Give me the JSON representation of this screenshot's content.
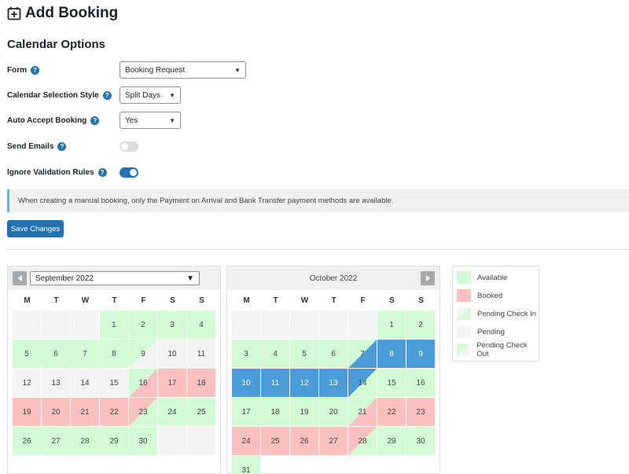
{
  "header": {
    "title": "Add Booking",
    "section_title": "Calendar Options"
  },
  "form": {
    "rows": [
      {
        "label": "Form",
        "control": "select",
        "value": "Booking Request"
      },
      {
        "label": "Calendar Selection Style",
        "control": "select",
        "value": "Split Days"
      },
      {
        "label": "Auto Accept Booking",
        "control": "select",
        "value": "Yes"
      },
      {
        "label": "Send Emails",
        "control": "toggle",
        "state": "off"
      },
      {
        "label": "Ignore Validation Rules",
        "control": "toggle",
        "state": "on"
      }
    ],
    "help_glyph": "?"
  },
  "notice": {
    "text": "When creating a manual booking, only the Payment on Arrival and Bank Transfer payment methods are available."
  },
  "save_button": {
    "label": "Save Changes"
  },
  "weekdays": [
    "M",
    "T",
    "W",
    "T",
    "F",
    "S",
    "S"
  ],
  "calendars": [
    {
      "month": "September 2022",
      "header_type": "select",
      "offset": 3,
      "days": [
        {
          "n": "1",
          "s": "available"
        },
        {
          "n": "2",
          "s": "available"
        },
        {
          "n": "3",
          "s": "available"
        },
        {
          "n": "4",
          "s": "available"
        },
        {
          "n": "5",
          "s": "available"
        },
        {
          "n": "6",
          "s": "available"
        },
        {
          "n": "7",
          "s": "available"
        },
        {
          "n": "8",
          "s": "available"
        },
        {
          "n": "9",
          "s": "checkout-available"
        },
        {
          "n": "10",
          "s": "pending"
        },
        {
          "n": "11",
          "s": "pending"
        },
        {
          "n": "12",
          "s": "pending"
        },
        {
          "n": "13",
          "s": "pending"
        },
        {
          "n": "14",
          "s": "pending"
        },
        {
          "n": "15",
          "s": "pending"
        },
        {
          "n": "16",
          "s": "checkin-booked"
        },
        {
          "n": "17",
          "s": "booked"
        },
        {
          "n": "18",
          "s": "booked"
        },
        {
          "n": "19",
          "s": "booked"
        },
        {
          "n": "20",
          "s": "booked"
        },
        {
          "n": "21",
          "s": "booked"
        },
        {
          "n": "22",
          "s": "booked"
        },
        {
          "n": "23",
          "s": "booked-avail"
        },
        {
          "n": "24",
          "s": "available"
        },
        {
          "n": "25",
          "s": "available"
        },
        {
          "n": "26",
          "s": "available"
        },
        {
          "n": "27",
          "s": "available"
        },
        {
          "n": "28",
          "s": "available"
        },
        {
          "n": "29",
          "s": "available"
        },
        {
          "n": "30",
          "s": "available"
        }
      ]
    },
    {
      "month": "October 2022",
      "header_type": "label",
      "offset": 5,
      "days": [
        {
          "n": "1",
          "s": "available"
        },
        {
          "n": "2",
          "s": "available"
        },
        {
          "n": "3",
          "s": "available"
        },
        {
          "n": "4",
          "s": "available"
        },
        {
          "n": "5",
          "s": "available"
        },
        {
          "n": "6",
          "s": "available"
        },
        {
          "n": "7",
          "s": "avail-selected"
        },
        {
          "n": "8",
          "s": "selected"
        },
        {
          "n": "9",
          "s": "selected"
        },
        {
          "n": "10",
          "s": "selected"
        },
        {
          "n": "11",
          "s": "selected"
        },
        {
          "n": "12",
          "s": "selected"
        },
        {
          "n": "13",
          "s": "selected"
        },
        {
          "n": "14",
          "s": "selected-avail"
        },
        {
          "n": "15",
          "s": "available"
        },
        {
          "n": "16",
          "s": "available"
        },
        {
          "n": "17",
          "s": "available"
        },
        {
          "n": "18",
          "s": "available"
        },
        {
          "n": "19",
          "s": "available"
        },
        {
          "n": "20",
          "s": "available"
        },
        {
          "n": "21",
          "s": "checkin-booked"
        },
        {
          "n": "22",
          "s": "booked"
        },
        {
          "n": "23",
          "s": "booked"
        },
        {
          "n": "24",
          "s": "booked"
        },
        {
          "n": "25",
          "s": "booked"
        },
        {
          "n": "26",
          "s": "booked"
        },
        {
          "n": "27",
          "s": "booked"
        },
        {
          "n": "28",
          "s": "booked-avail"
        },
        {
          "n": "29",
          "s": "available"
        },
        {
          "n": "30",
          "s": "available"
        },
        {
          "n": "31",
          "s": "available"
        }
      ]
    }
  ],
  "legend": {
    "items": [
      {
        "label": "Available",
        "swatch": "available"
      },
      {
        "label": "Booked",
        "swatch": "booked"
      },
      {
        "label": "Pending Check In",
        "swatch": "checkin"
      },
      {
        "label": "Pending",
        "swatch": "pending"
      },
      {
        "label": "Pending Check Out",
        "swatch": "checkout"
      }
    ]
  },
  "colors": {
    "primary": "#2271b1",
    "available": "#d4fcd4",
    "booked": "#fbc1c1",
    "pending": "#f4f4f4",
    "selected": "#4a9cd6"
  }
}
